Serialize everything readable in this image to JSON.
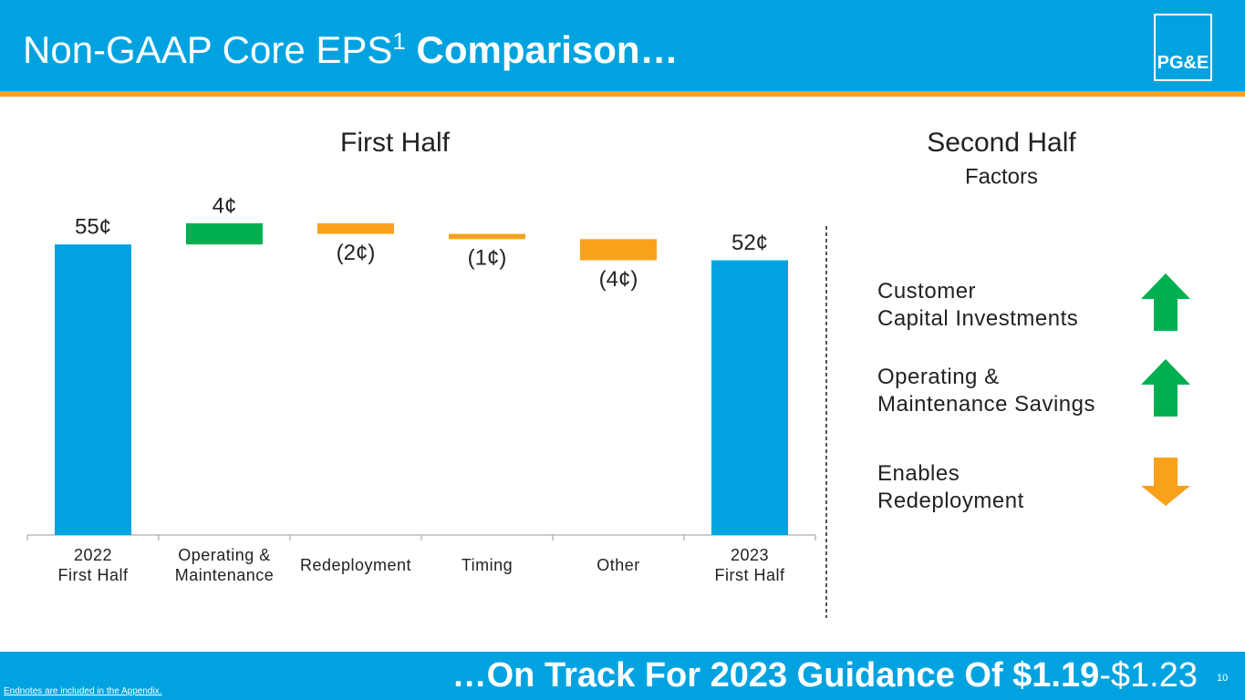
{
  "header": {
    "title": "Non-GAAP Core EPS",
    "superscript": "1",
    "title_bold": "Comparison…",
    "logo": "PG&E"
  },
  "chart_data": {
    "type": "waterfall",
    "title": "First Half",
    "categories": [
      "2022\nFirst Half",
      "Operating &\nMaintenance",
      "Redeployment",
      "Timing",
      "Other",
      "2023\nFirst Half"
    ],
    "values": [
      55,
      4,
      -2,
      -1,
      -4,
      52
    ],
    "value_labels": [
      "55¢",
      "4¢",
      "(2¢)",
      "(1¢)",
      "(4¢)",
      "52¢"
    ],
    "measures": [
      "total",
      "relative",
      "relative",
      "relative",
      "relative",
      "total"
    ],
    "colors": [
      "#00a3e0",
      "#00b050",
      "#f9a11b",
      "#f9a11b",
      "#f9a11b",
      "#00a3e0"
    ]
  },
  "factors": {
    "title": "Second Half",
    "subtitle": "Factors",
    "items": [
      {
        "label": "Customer\nCapital Investments",
        "direction": "up",
        "color": "#00b050"
      },
      {
        "label": "Operating &\nMaintenance Savings",
        "direction": "up",
        "color": "#00b050"
      },
      {
        "label": "Enables\nRedeployment",
        "direction": "down",
        "color": "#f9a11b"
      }
    ]
  },
  "footer": {
    "text": "…On Track For 2023 Guidance Of ",
    "bold": "$1.19",
    "rest": "-$1.23",
    "page": "10",
    "note": "Endnotes are included in the Appendix."
  }
}
